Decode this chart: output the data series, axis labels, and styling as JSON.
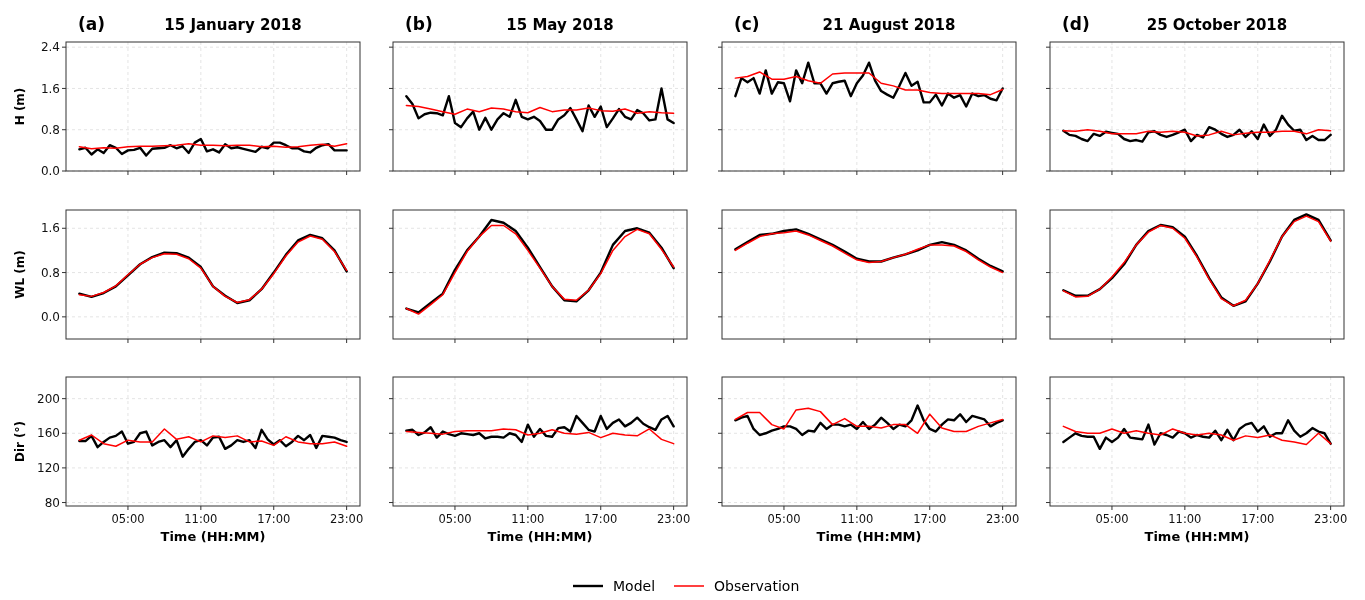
{
  "chart_data": [
    {
      "type": "line",
      "title": "(a)",
      "subtitle": "15 January 2018",
      "ylabel": "H (m)",
      "x": [
        1,
        1.5,
        2,
        2.5,
        3,
        3.5,
        4,
        4.5,
        5,
        5.5,
        6,
        6.5,
        7,
        7.5,
        8,
        8.5,
        9,
        9.5,
        10,
        10.5,
        11,
        11.5,
        12,
        12.5,
        13,
        13.5,
        14,
        14.5,
        15,
        15.5,
        16,
        16.5,
        17,
        17.5,
        18,
        18.5,
        19,
        19.5,
        20,
        20.5,
        21,
        21.5,
        22,
        22.5,
        23
      ],
      "xlim": [
        -0.1,
        24.1
      ],
      "xticks": [
        {
          "value": 5,
          "label": null
        },
        {
          "value": 11,
          "label": null
        },
        {
          "value": 17,
          "label": null
        },
        {
          "value": 23,
          "label": null
        }
      ],
      "ylim": [
        0,
        2.5
      ],
      "yticks": [
        {
          "value": 0,
          "label": "0.0"
        },
        0.8,
        1.6,
        2.4
      ],
      "grid": true,
      "tick_labels": "y",
      "legend": "bottom",
      "series": [
        {
          "name": "Model",
          "color": "#000000",
          "values": [
            0.42,
            0.45,
            0.32,
            0.42,
            0.35,
            0.5,
            0.45,
            0.33,
            0.4,
            0.41,
            0.45,
            0.3,
            0.43,
            0.44,
            0.45,
            0.5,
            0.44,
            0.48,
            0.35,
            0.55,
            0.62,
            0.38,
            0.42,
            0.36,
            0.52,
            0.44,
            0.46,
            0.43,
            0.4,
            0.37,
            0.47,
            0.44,
            0.55,
            0.55,
            0.5,
            0.44,
            0.44,
            0.38,
            0.36,
            0.45,
            0.5,
            0.52,
            0.4,
            0.4,
            0.4
          ]
        },
        {
          "name": "Observation",
          "color": "#ff0000",
          "x": [
            1,
            2,
            3,
            4,
            5,
            6,
            7,
            8,
            9,
            10,
            11,
            12,
            13,
            14,
            15,
            16,
            17,
            18,
            19,
            20,
            21,
            22,
            23
          ],
          "values": [
            0.47,
            0.43,
            0.45,
            0.44,
            0.47,
            0.48,
            0.48,
            0.49,
            0.5,
            0.53,
            0.5,
            0.5,
            0.49,
            0.5,
            0.5,
            0.47,
            0.48,
            0.46,
            0.47,
            0.5,
            0.52,
            0.48,
            0.53
          ]
        }
      ]
    },
    {
      "type": "line",
      "title": "(b)",
      "subtitle": "15 May 2018",
      "x": [
        1,
        1.5,
        2,
        2.5,
        3,
        3.5,
        4,
        4.5,
        5,
        5.5,
        6,
        6.5,
        7,
        7.5,
        8,
        8.5,
        9,
        9.5,
        10,
        10.5,
        11,
        11.5,
        12,
        12.5,
        13,
        13.5,
        14,
        14.5,
        15,
        15.5,
        16,
        16.5,
        17,
        17.5,
        18,
        18.5,
        19,
        19.5,
        20,
        20.5,
        21,
        21.5,
        22,
        22.5,
        23
      ],
      "xlim": [
        -0.1,
        24.1
      ],
      "xticks": [
        {
          "value": 5,
          "label": null
        },
        {
          "value": 11,
          "label": null
        },
        {
          "value": 17,
          "label": null
        },
        {
          "value": 23,
          "label": null
        }
      ],
      "ylim": [
        0,
        2.5
      ],
      "yticks": [
        {
          "value": 0,
          "label": null
        },
        {
          "value": 0.8,
          "label": null
        },
        {
          "value": 1.6,
          "label": null
        },
        {
          "value": 2.4,
          "label": null
        }
      ],
      "grid": true,
      "tick_labels": false,
      "series": [
        {
          "color": "#000000",
          "values": [
            1.45,
            1.3,
            1.02,
            1.1,
            1.13,
            1.12,
            1.08,
            1.45,
            0.93,
            0.85,
            1.02,
            1.15,
            0.8,
            1.03,
            0.8,
            1.0,
            1.12,
            1.05,
            1.38,
            1.05,
            1.0,
            1.05,
            0.97,
            0.8,
            0.8,
            1.0,
            1.08,
            1.22,
            1.0,
            0.77,
            1.27,
            1.05,
            1.25,
            0.85,
            1.02,
            1.2,
            1.05,
            1.0,
            1.18,
            1.12,
            0.98,
            1.0,
            1.6,
            1.0,
            0.93
          ]
        },
        {
          "color": "#ff0000",
          "x": [
            1,
            2,
            3,
            4,
            5,
            6,
            7,
            8,
            9,
            10,
            11,
            12,
            13,
            14,
            15,
            16,
            17,
            18,
            19,
            20,
            21,
            22,
            23
          ],
          "values": [
            1.27,
            1.25,
            1.2,
            1.15,
            1.1,
            1.2,
            1.15,
            1.22,
            1.2,
            1.15,
            1.13,
            1.23,
            1.15,
            1.18,
            1.18,
            1.22,
            1.17,
            1.16,
            1.2,
            1.12,
            1.15,
            1.13,
            1.12
          ]
        }
      ]
    },
    {
      "type": "line",
      "title": "(c)",
      "subtitle": "21 August 2018",
      "x": [
        1,
        1.5,
        2,
        2.5,
        3,
        3.5,
        4,
        4.5,
        5,
        5.5,
        6,
        6.5,
        7,
        7.5,
        8,
        8.5,
        9,
        9.5,
        10,
        10.5,
        11,
        11.5,
        12,
        12.5,
        13,
        13.5,
        14,
        14.5,
        15,
        15.5,
        16,
        16.5,
        17,
        17.5,
        18,
        18.5,
        19,
        19.5,
        20,
        20.5,
        21,
        21.5,
        22,
        22.5,
        23
      ],
      "xlim": [
        -0.1,
        24.1
      ],
      "xticks": [
        {
          "value": 5,
          "label": null
        },
        {
          "value": 11,
          "label": null
        },
        {
          "value": 17,
          "label": null
        },
        {
          "value": 23,
          "label": null
        }
      ],
      "ylim": [
        0,
        2.5
      ],
      "yticks": [
        {
          "value": 0,
          "label": null
        },
        {
          "value": 0.8,
          "label": null
        },
        {
          "value": 1.6,
          "label": null
        },
        {
          "value": 2.4,
          "label": null
        }
      ],
      "grid": true,
      "tick_labels": false,
      "series": [
        {
          "color": "#000000",
          "values": [
            1.45,
            1.8,
            1.72,
            1.8,
            1.5,
            1.95,
            1.5,
            1.72,
            1.7,
            1.35,
            1.95,
            1.7,
            2.1,
            1.7,
            1.7,
            1.5,
            1.7,
            1.73,
            1.75,
            1.45,
            1.7,
            1.85,
            2.1,
            1.75,
            1.55,
            1.48,
            1.42,
            1.65,
            1.9,
            1.65,
            1.73,
            1.33,
            1.33,
            1.48,
            1.27,
            1.5,
            1.42,
            1.47,
            1.25,
            1.5,
            1.45,
            1.47,
            1.4,
            1.37,
            1.6
          ]
        },
        {
          "color": "#ff0000",
          "x": [
            1,
            2,
            3,
            4,
            5,
            6,
            7,
            8,
            9,
            10,
            11,
            12,
            13,
            14,
            15,
            16,
            17,
            18,
            19,
            20,
            21,
            22,
            23
          ],
          "values": [
            1.8,
            1.83,
            1.92,
            1.78,
            1.78,
            1.83,
            1.75,
            1.7,
            1.88,
            1.9,
            1.9,
            1.9,
            1.7,
            1.65,
            1.57,
            1.57,
            1.52,
            1.5,
            1.5,
            1.5,
            1.5,
            1.48,
            1.58
          ]
        }
      ]
    },
    {
      "type": "line",
      "title": "(d)",
      "subtitle": "25 October 2018",
      "x": [
        1,
        1.5,
        2,
        2.5,
        3,
        3.5,
        4,
        4.5,
        5,
        5.5,
        6,
        6.5,
        7,
        7.5,
        8,
        8.5,
        9,
        9.5,
        10,
        10.5,
        11,
        11.5,
        12,
        12.5,
        13,
        13.5,
        14,
        14.5,
        15,
        15.5,
        16,
        16.5,
        17,
        17.5,
        18,
        18.5,
        19,
        19.5,
        20,
        20.5,
        21,
        21.5,
        22,
        22.5,
        23
      ],
      "xlim": [
        -0.1,
        24.1
      ],
      "xticks": [
        {
          "value": 5,
          "label": null
        },
        {
          "value": 11,
          "label": null
        },
        {
          "value": 17,
          "label": null
        },
        {
          "value": 23,
          "label": null
        }
      ],
      "ylim": [
        0,
        2.5
      ],
      "yticks": [
        {
          "value": 0,
          "label": null
        },
        {
          "value": 0.8,
          "label": null
        },
        {
          "value": 1.6,
          "label": null
        },
        {
          "value": 2.4,
          "label": null
        }
      ],
      "grid": true,
      "tick_labels": false,
      "series": [
        {
          "color": "#000000",
          "values": [
            0.78,
            0.7,
            0.68,
            0.62,
            0.58,
            0.72,
            0.68,
            0.76,
            0.74,
            0.72,
            0.62,
            0.58,
            0.6,
            0.57,
            0.75,
            0.77,
            0.7,
            0.66,
            0.7,
            0.75,
            0.8,
            0.58,
            0.7,
            0.65,
            0.85,
            0.8,
            0.72,
            0.66,
            0.7,
            0.8,
            0.66,
            0.77,
            0.62,
            0.9,
            0.68,
            0.8,
            1.07,
            0.9,
            0.78,
            0.8,
            0.6,
            0.68,
            0.6,
            0.6,
            0.7
          ]
        },
        {
          "color": "#ff0000",
          "x": [
            1,
            2,
            3,
            4,
            5,
            6,
            7,
            8,
            9,
            10,
            11,
            12,
            13,
            14,
            15,
            16,
            17,
            18,
            19,
            20,
            21,
            22,
            23
          ],
          "values": [
            0.78,
            0.77,
            0.8,
            0.77,
            0.72,
            0.72,
            0.72,
            0.77,
            0.75,
            0.77,
            0.75,
            0.68,
            0.7,
            0.77,
            0.7,
            0.73,
            0.75,
            0.75,
            0.77,
            0.77,
            0.72,
            0.8,
            0.78
          ]
        }
      ]
    },
    {
      "type": "line",
      "ylabel": "WL (m)",
      "x": [
        1,
        2,
        3,
        4,
        5,
        6,
        7,
        8,
        9,
        10,
        11,
        12,
        13,
        14,
        15,
        16,
        17,
        18,
        19,
        20,
        21,
        22,
        23
      ],
      "xlim": [
        -0.1,
        24.1
      ],
      "xticks": [
        {
          "value": 5,
          "label": null
        },
        {
          "value": 11,
          "label": null
        },
        {
          "value": 17,
          "label": null
        },
        {
          "value": 23,
          "label": null
        }
      ],
      "ylim": [
        -0.4,
        1.93
      ],
      "yticks": [
        {
          "value": 0,
          "label": "0.0"
        },
        0.8,
        1.6
      ],
      "grid": true,
      "tick_labels": "y",
      "series": [
        {
          "color": "#000000",
          "values": [
            0.42,
            0.36,
            0.43,
            0.55,
            0.75,
            0.95,
            1.08,
            1.16,
            1.15,
            1.07,
            0.9,
            0.55,
            0.38,
            0.25,
            0.3,
            0.5,
            0.8,
            1.12,
            1.38,
            1.48,
            1.42,
            1.2,
            0.82
          ]
        },
        {
          "color": "#ff0000",
          "values": [
            0.4,
            0.37,
            0.44,
            0.56,
            0.76,
            0.95,
            1.07,
            1.14,
            1.13,
            1.05,
            0.88,
            0.55,
            0.37,
            0.26,
            0.31,
            0.5,
            0.78,
            1.1,
            1.35,
            1.46,
            1.4,
            1.18,
            0.84
          ]
        }
      ]
    },
    {
      "type": "line",
      "x": [
        1,
        2,
        3,
        4,
        5,
        6,
        7,
        8,
        9,
        10,
        11,
        12,
        13,
        14,
        15,
        16,
        17,
        18,
        19,
        20,
        21,
        22,
        23
      ],
      "xlim": [
        -0.1,
        24.1
      ],
      "xticks": [
        {
          "value": 5,
          "label": null
        },
        {
          "value": 11,
          "label": null
        },
        {
          "value": 17,
          "label": null
        },
        {
          "value": 23,
          "label": null
        }
      ],
      "ylim": [
        -0.4,
        1.93
      ],
      "yticks": [
        {
          "value": 0,
          "label": null
        },
        {
          "value": 0.8,
          "label": null
        },
        {
          "value": 1.6,
          "label": null
        }
      ],
      "grid": true,
      "tick_labels": false,
      "series": [
        {
          "color": "#000000",
          "values": [
            0.15,
            0.08,
            0.25,
            0.42,
            0.85,
            1.2,
            1.45,
            1.75,
            1.7,
            1.55,
            1.25,
            0.9,
            0.55,
            0.3,
            0.28,
            0.48,
            0.8,
            1.3,
            1.55,
            1.6,
            1.52,
            1.25,
            0.88
          ]
        },
        {
          "color": "#ff0000",
          "values": [
            0.15,
            0.05,
            0.22,
            0.4,
            0.8,
            1.18,
            1.45,
            1.65,
            1.65,
            1.5,
            1.2,
            0.88,
            0.55,
            0.32,
            0.3,
            0.48,
            0.78,
            1.2,
            1.45,
            1.58,
            1.5,
            1.22,
            0.9
          ]
        }
      ]
    },
    {
      "type": "line",
      "x": [
        1,
        2,
        3,
        4,
        5,
        6,
        7,
        8,
        9,
        10,
        11,
        12,
        13,
        14,
        15,
        16,
        17,
        18,
        19,
        20,
        21,
        22,
        23
      ],
      "xlim": [
        -0.1,
        24.1
      ],
      "xticks": [
        {
          "value": 5,
          "label": null
        },
        {
          "value": 11,
          "label": null
        },
        {
          "value": 17,
          "label": null
        },
        {
          "value": 23,
          "label": null
        }
      ],
      "ylim": [
        -0.4,
        1.93
      ],
      "yticks": [
        {
          "value": 0,
          "label": null
        },
        {
          "value": 0.8,
          "label": null
        },
        {
          "value": 1.6,
          "label": null
        }
      ],
      "grid": true,
      "tick_labels": false,
      "series": [
        {
          "color": "#000000",
          "values": [
            1.22,
            1.35,
            1.48,
            1.5,
            1.55,
            1.58,
            1.5,
            1.4,
            1.3,
            1.18,
            1.05,
            1.0,
            1.0,
            1.07,
            1.13,
            1.2,
            1.3,
            1.35,
            1.3,
            1.2,
            1.05,
            0.92,
            0.82
          ]
        },
        {
          "color": "#ff0000",
          "values": [
            1.2,
            1.33,
            1.45,
            1.5,
            1.52,
            1.55,
            1.48,
            1.38,
            1.28,
            1.15,
            1.03,
            0.98,
            1.0,
            1.07,
            1.13,
            1.22,
            1.3,
            1.3,
            1.28,
            1.18,
            1.03,
            0.9,
            0.8
          ]
        }
      ]
    },
    {
      "type": "line",
      "x": [
        1,
        2,
        3,
        4,
        5,
        6,
        7,
        8,
        9,
        10,
        11,
        12,
        13,
        14,
        15,
        16,
        17,
        18,
        19,
        20,
        21,
        22,
        23
      ],
      "xlim": [
        -0.1,
        24.1
      ],
      "xticks": [
        {
          "value": 5,
          "label": null
        },
        {
          "value": 11,
          "label": null
        },
        {
          "value": 17,
          "label": null
        },
        {
          "value": 23,
          "label": null
        }
      ],
      "ylim": [
        -0.4,
        1.93
      ],
      "yticks": [
        {
          "value": 0,
          "label": null
        },
        {
          "value": 0.8,
          "label": null
        },
        {
          "value": 1.6,
          "label": null
        }
      ],
      "grid": true,
      "tick_labels": false,
      "series": [
        {
          "color": "#000000",
          "values": [
            0.48,
            0.38,
            0.38,
            0.5,
            0.7,
            0.95,
            1.3,
            1.55,
            1.66,
            1.62,
            1.45,
            1.1,
            0.7,
            0.35,
            0.2,
            0.28,
            0.6,
            1.0,
            1.45,
            1.75,
            1.85,
            1.75,
            1.38
          ]
        },
        {
          "color": "#ff0000",
          "values": [
            0.47,
            0.36,
            0.37,
            0.5,
            0.72,
            0.98,
            1.3,
            1.53,
            1.65,
            1.6,
            1.42,
            1.08,
            0.68,
            0.33,
            0.2,
            0.3,
            0.6,
            1.02,
            1.45,
            1.72,
            1.82,
            1.72,
            1.37
          ]
        }
      ]
    },
    {
      "type": "line",
      "ylabel": "Dir (°)",
      "xlabel": "Time (HH:MM)",
      "x": [
        1,
        1.5,
        2,
        2.5,
        3,
        3.5,
        4,
        4.5,
        5,
        5.5,
        6,
        6.5,
        7,
        7.5,
        8,
        8.5,
        9,
        9.5,
        10,
        10.5,
        11,
        11.5,
        12,
        12.5,
        13,
        13.5,
        14,
        14.5,
        15,
        15.5,
        16,
        16.5,
        17,
        17.5,
        18,
        18.5,
        19,
        19.5,
        20,
        20.5,
        21,
        21.5,
        22,
        22.5,
        23
      ],
      "xlim": [
        -0.1,
        24.1
      ],
      "xticks": [
        {
          "value": 5,
          "label": "05:00"
        },
        {
          "value": 11,
          "label": "11:00"
        },
        {
          "value": 17,
          "label": "17:00"
        },
        {
          "value": 23,
          "label": "23:00"
        }
      ],
      "ylim": [
        76,
        225
      ],
      "yticks": [
        80,
        120,
        160,
        200
      ],
      "grid": true,
      "series": [
        {
          "color": "#000000",
          "values": [
            151,
            151,
            157,
            144,
            150,
            155,
            157,
            162,
            148,
            150,
            160,
            162,
            146,
            150,
            152,
            144,
            152,
            133,
            142,
            150,
            152,
            146,
            155,
            156,
            142,
            146,
            152,
            150,
            152,
            143,
            164,
            153,
            147,
            152,
            145,
            150,
            157,
            152,
            158,
            143,
            157,
            156,
            155,
            152,
            150
          ]
        },
        {
          "color": "#ff0000",
          "x": [
            1,
            2,
            3,
            4,
            5,
            6,
            7,
            8,
            9,
            10,
            11,
            12,
            13,
            14,
            15,
            16,
            17,
            18,
            19,
            20,
            21,
            22,
            23
          ],
          "values": [
            152,
            158,
            148,
            145,
            152,
            150,
            150,
            165,
            153,
            156,
            150,
            157,
            155,
            157,
            150,
            151,
            146,
            156,
            150,
            148,
            148,
            150,
            145
          ]
        }
      ]
    },
    {
      "type": "line",
      "xlabel": "Time (HH:MM)",
      "x": [
        1,
        1.5,
        2,
        2.5,
        3,
        3.5,
        4,
        4.5,
        5,
        5.5,
        6,
        6.5,
        7,
        7.5,
        8,
        8.5,
        9,
        9.5,
        10,
        10.5,
        11,
        11.5,
        12,
        12.5,
        13,
        13.5,
        14,
        14.5,
        15,
        15.5,
        16,
        16.5,
        17,
        17.5,
        18,
        18.5,
        19,
        19.5,
        20,
        20.5,
        21,
        21.5,
        22,
        22.5,
        23
      ],
      "xlim": [
        -0.1,
        24.1
      ],
      "xticks": [
        {
          "value": 5,
          "label": "05:00"
        },
        {
          "value": 11,
          "label": "11:00"
        },
        {
          "value": 17,
          "label": "17:00"
        },
        {
          "value": 23,
          "label": "23:00"
        }
      ],
      "ylim": [
        76,
        225
      ],
      "yticks": [
        {
          "value": 80,
          "label": null
        },
        {
          "value": 120,
          "label": null
        },
        {
          "value": 160,
          "label": null
        },
        {
          "value": 200,
          "label": null
        }
      ],
      "grid": true,
      "tick_labels": "x",
      "series": [
        {
          "color": "#000000",
          "values": [
            163,
            164,
            158,
            161,
            167,
            155,
            162,
            159,
            157,
            160,
            159,
            158,
            160,
            154,
            156,
            156,
            155,
            160,
            158,
            150,
            170,
            156,
            165,
            157,
            156,
            166,
            167,
            162,
            180,
            172,
            164,
            162,
            180,
            165,
            172,
            176,
            168,
            172,
            178,
            171,
            167,
            164,
            176,
            180,
            168
          ]
        },
        {
          "color": "#ff0000",
          "x": [
            1,
            2,
            3,
            4,
            5,
            6,
            7,
            8,
            9,
            10,
            11,
            12,
            13,
            14,
            15,
            16,
            17,
            18,
            19,
            20,
            21,
            22,
            23
          ],
          "values": [
            162,
            161,
            160,
            159,
            162,
            163,
            163,
            163,
            165,
            164,
            158,
            160,
            164,
            160,
            159,
            161,
            155,
            160,
            158,
            157,
            165,
            153,
            148
          ]
        }
      ]
    },
    {
      "type": "line",
      "xlabel": "Time (HH:MM)",
      "x": [
        1,
        1.5,
        2,
        2.5,
        3,
        3.5,
        4,
        4.5,
        5,
        5.5,
        6,
        6.5,
        7,
        7.5,
        8,
        8.5,
        9,
        9.5,
        10,
        10.5,
        11,
        11.5,
        12,
        12.5,
        13,
        13.5,
        14,
        14.5,
        15,
        15.5,
        16,
        16.5,
        17,
        17.5,
        18,
        18.5,
        19,
        19.5,
        20,
        20.5,
        21,
        21.5,
        22,
        22.5,
        23
      ],
      "xlim": [
        -0.1,
        24.1
      ],
      "xticks": [
        {
          "value": 5,
          "label": "05:00"
        },
        {
          "value": 11,
          "label": "11:00"
        },
        {
          "value": 17,
          "label": "17:00"
        },
        {
          "value": 23,
          "label": "23:00"
        }
      ],
      "ylim": [
        76,
        225
      ],
      "yticks": [
        {
          "value": 80,
          "label": null
        },
        {
          "value": 120,
          "label": null
        },
        {
          "value": 160,
          "label": null
        },
        {
          "value": 200,
          "label": null
        }
      ],
      "grid": true,
      "tick_labels": "x",
      "series": [
        {
          "color": "#000000",
          "values": [
            175,
            178,
            180,
            165,
            158,
            160,
            163,
            165,
            168,
            168,
            165,
            158,
            163,
            162,
            172,
            165,
            170,
            170,
            168,
            170,
            165,
            173,
            165,
            170,
            178,
            172,
            165,
            170,
            168,
            175,
            192,
            175,
            165,
            162,
            170,
            176,
            175,
            182,
            173,
            180,
            178,
            176,
            168,
            172,
            175
          ]
        },
        {
          "color": "#ff0000",
          "x": [
            1,
            2,
            3,
            4,
            5,
            6,
            7,
            8,
            9,
            10,
            11,
            12,
            13,
            14,
            15,
            16,
            17,
            18,
            19,
            20,
            21,
            22,
            23
          ],
          "values": [
            176,
            184,
            184,
            170,
            165,
            187,
            189,
            185,
            170,
            177,
            168,
            168,
            166,
            170,
            170,
            160,
            182,
            166,
            162,
            162,
            168,
            172,
            176
          ]
        }
      ]
    },
    {
      "type": "line",
      "xlabel": "Time (HH:MM)",
      "x": [
        1,
        1.5,
        2,
        2.5,
        3,
        3.5,
        4,
        4.5,
        5,
        5.5,
        6,
        6.5,
        7,
        7.5,
        8,
        8.5,
        9,
        9.5,
        10,
        10.5,
        11,
        11.5,
        12,
        12.5,
        13,
        13.5,
        14,
        14.5,
        15,
        15.5,
        16,
        16.5,
        17,
        17.5,
        18,
        18.5,
        19,
        19.5,
        20,
        20.5,
        21,
        21.5,
        22,
        22.5,
        23
      ],
      "xlim": [
        -0.1,
        24.1
      ],
      "xticks": [
        {
          "value": 5,
          "label": "05:00"
        },
        {
          "value": 11,
          "label": "11:00"
        },
        {
          "value": 17,
          "label": "17:00"
        },
        {
          "value": 23,
          "label": "23:00"
        }
      ],
      "ylim": [
        76,
        225
      ],
      "yticks": [
        {
          "value": 80,
          "label": null
        },
        {
          "value": 120,
          "label": null
        },
        {
          "value": 160,
          "label": null
        },
        {
          "value": 200,
          "label": null
        }
      ],
      "grid": true,
      "tick_labels": "x",
      "series": [
        {
          "color": "#000000",
          "values": [
            150,
            155,
            160,
            157,
            156,
            156,
            142,
            155,
            150,
            155,
            165,
            155,
            154,
            153,
            170,
            147,
            160,
            158,
            155,
            162,
            160,
            155,
            158,
            156,
            155,
            163,
            152,
            164,
            152,
            165,
            170,
            172,
            162,
            168,
            156,
            160,
            160,
            175,
            163,
            156,
            160,
            166,
            162,
            160,
            148
          ]
        },
        {
          "color": "#ff0000",
          "x": [
            1,
            2,
            3,
            4,
            5,
            6,
            7,
            8,
            9,
            10,
            11,
            12,
            13,
            14,
            15,
            16,
            17,
            18,
            19,
            20,
            21,
            22,
            23
          ],
          "values": [
            168,
            162,
            160,
            160,
            165,
            160,
            163,
            160,
            158,
            165,
            160,
            158,
            160,
            158,
            152,
            157,
            155,
            158,
            152,
            150,
            147,
            160,
            148
          ]
        }
      ]
    }
  ]
}
